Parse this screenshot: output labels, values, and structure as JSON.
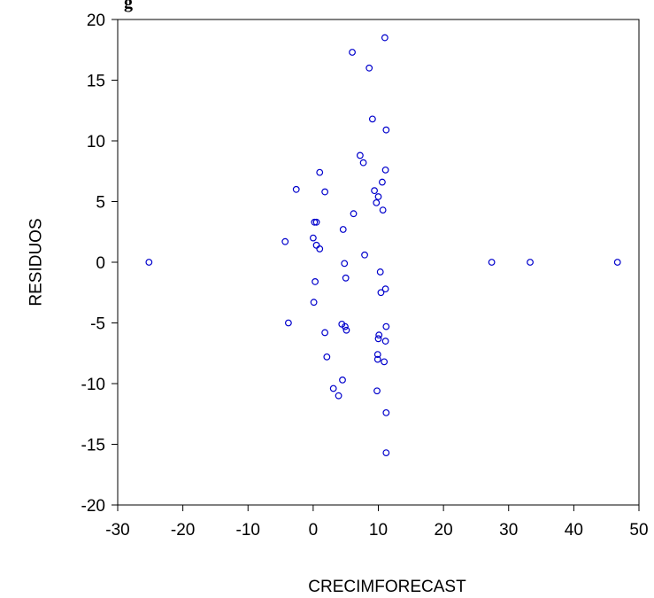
{
  "page": {
    "title_fragment": "g"
  },
  "chart_data": {
    "type": "scatter",
    "title": "",
    "xlabel": "CRECIMFORECAST",
    "ylabel": "RESIDUOS",
    "xlim": [
      -30,
      50
    ],
    "ylim": [
      -20,
      20
    ],
    "xticks": [
      "-30",
      "-20",
      "-10",
      "0",
      "10",
      "20",
      "30",
      "40",
      "50"
    ],
    "yticks": [
      "-20",
      "-15",
      "-10",
      "-5",
      "0",
      "5",
      "10",
      "15",
      "20"
    ],
    "grid": false,
    "marker_color": "#0000cc",
    "marker": "hollow-circle",
    "points": [
      {
        "x": -25.2,
        "y": 0.0
      },
      {
        "x": 27.4,
        "y": 0.0
      },
      {
        "x": 33.3,
        "y": 0.0
      },
      {
        "x": 46.7,
        "y": 0.0
      },
      {
        "x": 11.0,
        "y": 18.5
      },
      {
        "x": 6.0,
        "y": 17.3
      },
      {
        "x": 8.6,
        "y": 16.0
      },
      {
        "x": 9.1,
        "y": 11.8
      },
      {
        "x": 11.2,
        "y": 10.9
      },
      {
        "x": 7.2,
        "y": 8.8
      },
      {
        "x": 7.7,
        "y": 8.2
      },
      {
        "x": 1.0,
        "y": 7.4
      },
      {
        "x": 11.1,
        "y": 7.6
      },
      {
        "x": 10.6,
        "y": 6.6
      },
      {
        "x": -2.6,
        "y": 6.0
      },
      {
        "x": 1.8,
        "y": 5.8
      },
      {
        "x": 9.4,
        "y": 5.9
      },
      {
        "x": 10.0,
        "y": 5.4
      },
      {
        "x": 9.7,
        "y": 4.9
      },
      {
        "x": 10.7,
        "y": 4.3
      },
      {
        "x": 6.2,
        "y": 4.0
      },
      {
        "x": 0.2,
        "y": 3.3
      },
      {
        "x": 0.5,
        "y": 3.3
      },
      {
        "x": 4.6,
        "y": 2.7
      },
      {
        "x": 0.0,
        "y": 2.0
      },
      {
        "x": -4.3,
        "y": 1.7
      },
      {
        "x": 0.5,
        "y": 1.4
      },
      {
        "x": 1.0,
        "y": 1.1
      },
      {
        "x": 7.9,
        "y": 0.6
      },
      {
        "x": 4.8,
        "y": -0.1
      },
      {
        "x": 10.3,
        "y": -0.8
      },
      {
        "x": 5.0,
        "y": -1.3
      },
      {
        "x": 0.3,
        "y": -1.6
      },
      {
        "x": 11.1,
        "y": -2.2
      },
      {
        "x": 10.4,
        "y": -2.5
      },
      {
        "x": 0.1,
        "y": -3.3
      },
      {
        "x": -3.8,
        "y": -5.0
      },
      {
        "x": 4.4,
        "y": -5.1
      },
      {
        "x": 4.9,
        "y": -5.3
      },
      {
        "x": 5.1,
        "y": -5.6
      },
      {
        "x": 11.2,
        "y": -5.3
      },
      {
        "x": 1.8,
        "y": -5.8
      },
      {
        "x": 10.1,
        "y": -6.0
      },
      {
        "x": 10.0,
        "y": -6.3
      },
      {
        "x": 11.1,
        "y": -6.5
      },
      {
        "x": 2.1,
        "y": -7.8
      },
      {
        "x": 9.9,
        "y": -7.6
      },
      {
        "x": 9.9,
        "y": -8.0
      },
      {
        "x": 10.9,
        "y": -8.2
      },
      {
        "x": 4.5,
        "y": -9.7
      },
      {
        "x": 3.1,
        "y": -10.4
      },
      {
        "x": 9.8,
        "y": -10.6
      },
      {
        "x": 3.9,
        "y": -11.0
      },
      {
        "x": 11.2,
        "y": -12.4
      },
      {
        "x": 11.2,
        "y": -15.7
      }
    ]
  }
}
